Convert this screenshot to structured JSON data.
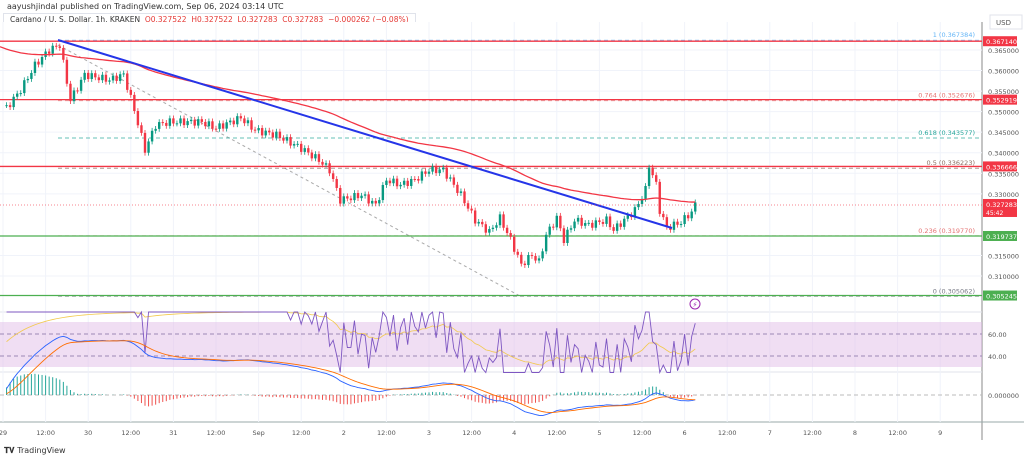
{
  "header": {
    "published": "aayushjindal published on TradingView.com, Sep 06, 2024 03:14 UTC",
    "symbol": "Cardano / U. S. Dollar, 1h, KRAKEN",
    "open": "O0.327522",
    "high": "H0.327522",
    "low": "L0.327283",
    "close": "C0.327283",
    "change": "−0.000262 (−0.08%)"
  },
  "footer": {
    "brand": "TradingView"
  },
  "chart_data": {
    "type": "candlestick",
    "currency": "USD",
    "ylim": [
      0.3015,
      0.3745
    ],
    "y_ticks": [
      "0.365000",
      "0.360000",
      "0.355000",
      "0.350000",
      "0.345000",
      "0.340000",
      "0.335000",
      "0.330000",
      "0.315000",
      "0.310000"
    ],
    "x_ticks": [
      "29",
      "12:00",
      "30",
      "12:00",
      "31",
      "12:00",
      "Sep",
      "12:00",
      "2",
      "12:00",
      "3",
      "12:00",
      "4",
      "12:00",
      "5",
      "12:00",
      "6",
      "12:00",
      "7",
      "12:00",
      "8",
      "12:00",
      "9"
    ],
    "price_path": [
      [
        "08-29 01:00",
        0.3509
      ],
      [
        "08-29 05:00",
        0.3553
      ],
      [
        "08-29 09:00",
        0.3613
      ],
      [
        "08-29 13:00",
        0.365
      ],
      [
        "08-29 16:00",
        0.3662
      ],
      [
        "08-29 19:00",
        0.3528
      ],
      [
        "08-29 23:00",
        0.359
      ],
      [
        "08-30 06:00",
        0.3577
      ],
      [
        "08-30 10:00",
        0.359
      ],
      [
        "08-30 13:00",
        0.3504
      ],
      [
        "08-30 16:00",
        0.3407
      ],
      [
        "08-30 19:00",
        0.3467
      ],
      [
        "08-30 23:00",
        0.3475
      ],
      [
        "08-31 08:00",
        0.3475
      ],
      [
        "08-31 12:00",
        0.346
      ],
      [
        "08-31 19:00",
        0.3485
      ],
      [
        "08-31 23:00",
        0.3455
      ],
      [
        "09-01 05:00",
        0.3443
      ],
      [
        "09-01 12:00",
        0.3411
      ],
      [
        "09-01 17:00",
        0.3382
      ],
      [
        "09-01 20:00",
        0.3358
      ],
      [
        "09-01 23:00",
        0.3285
      ],
      [
        "09-02 05:00",
        0.3297
      ],
      [
        "09-02 09:00",
        0.3273
      ],
      [
        "09-02 12:00",
        0.3334
      ],
      [
        "09-02 16:00",
        0.3322
      ],
      [
        "09-02 20:00",
        0.3334
      ],
      [
        "09-03 00:00",
        0.3358
      ],
      [
        "09-03 04:00",
        0.3358
      ],
      [
        "09-03 09:00",
        0.3297
      ],
      [
        "09-03 13:00",
        0.3236
      ],
      [
        "09-03 17:00",
        0.3207
      ],
      [
        "09-03 20:00",
        0.3241
      ],
      [
        "09-03 23:00",
        0.3188
      ],
      [
        "09-04 02:00",
        0.3127
      ],
      [
        "09-04 05:00",
        0.3151
      ],
      [
        "09-04 07:00",
        0.3134
      ],
      [
        "09-04 09:00",
        0.32
      ],
      [
        "09-04 12:00",
        0.3241
      ],
      [
        "09-04 14:00",
        0.3188
      ],
      [
        "09-04 17:00",
        0.3236
      ],
      [
        "09-04 21:00",
        0.3224
      ],
      [
        "09-05 02:00",
        0.3236
      ],
      [
        "09-05 04:00",
        0.3212
      ],
      [
        "09-05 07:00",
        0.3236
      ],
      [
        "09-05 10:00",
        0.326
      ],
      [
        "09-05 13:00",
        0.331
      ],
      [
        "09-05 14:00",
        0.337
      ],
      [
        "09-05 16:00",
        0.3322
      ],
      [
        "09-05 17:00",
        0.326
      ],
      [
        "09-05 19:00",
        0.3217
      ],
      [
        "09-05 23:00",
        0.3231
      ],
      [
        "09-06 02:00",
        0.3256
      ],
      [
        "09-06 03:00",
        0.3273
      ]
    ],
    "horizontal_levels": [
      {
        "price": "0.367140",
        "color": "#f23645"
      },
      {
        "price": "0.352919",
        "color": "#f23645"
      },
      {
        "price": "0.336666",
        "color": "#f23645"
      },
      {
        "price": "0.319737",
        "color": "#4caf50"
      },
      {
        "price": "0.305245",
        "color": "#4caf50"
      }
    ],
    "fib_levels": [
      {
        "label": "1 (0.367384)",
        "price": 0.367384,
        "color": "#64b5f6"
      },
      {
        "label": "0.764 (0.352676)",
        "price": 0.352676,
        "color": "#e57373"
      },
      {
        "label": "0.618 (0.343577)",
        "price": 0.343577,
        "color": "#26a69a"
      },
      {
        "label": "0.5 (0.336223)",
        "price": 0.336223,
        "color": "#8d6e63"
      },
      {
        "label": "0.236 (0.319770)",
        "price": 0.31977,
        "color": "#e57373"
      },
      {
        "label": "0 (0.305062)",
        "price": 0.305062,
        "color": "#787b86"
      }
    ],
    "last_price": {
      "value": "0.327283",
      "countdown": "45:42"
    },
    "trendline_color": "#2535e8",
    "ema_color": "#f23645",
    "rsi": {
      "ticks": [
        "60.00",
        "40.00"
      ],
      "band_color": "#e1bee7"
    },
    "macd": {
      "ticks": [
        "0.000000"
      ]
    },
    "colors": {
      "up": "#089981",
      "down": "#f23645"
    }
  }
}
